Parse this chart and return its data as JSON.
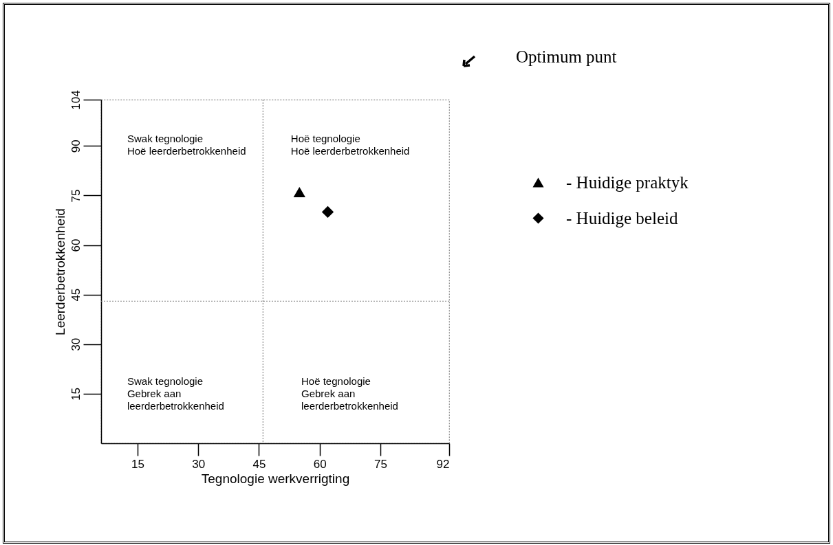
{
  "chart_data": {
    "type": "scatter",
    "xlabel": "Tegnologie werkverrigting",
    "ylabel": "Leerderbetrokkenheid",
    "xlim": [
      6,
      92
    ],
    "ylim": [
      0,
      104
    ],
    "xticks": [
      15,
      30,
      45,
      60,
      75,
      92
    ],
    "yticks": [
      15,
      30,
      45,
      60,
      75,
      90,
      104
    ],
    "series": [
      {
        "name": "- Huidige praktyk",
        "color": "#000000",
        "marker": "triangle",
        "x": [
          55
        ],
        "values": [
          76
        ]
      },
      {
        "name": "- Huidige beleid",
        "color": "#000000",
        "marker": "diamond",
        "x": [
          62
        ],
        "values": [
          70
        ]
      }
    ],
    "ref_lines": [
      {
        "axis": "x",
        "value": 46,
        "label": null,
        "color": "#888888",
        "line_style": "dotted"
      },
      {
        "axis": "y",
        "value": 43,
        "label": null,
        "color": "#888888",
        "line_style": "dotted"
      }
    ],
    "annotations": [
      "Swak tegnologie\nHoë leerderbetrokkenheid",
      "Hoë tegnologie\nHoë leerderbetrokkenheid",
      "Swak tegnologie\nGebrek aan\nleerderbetrokkenheid",
      "Hoë tegnologie\nGebrek aan\nleerderbetrokkenheid",
      "Optimum punt"
    ],
    "grid": false,
    "legend": "right"
  }
}
